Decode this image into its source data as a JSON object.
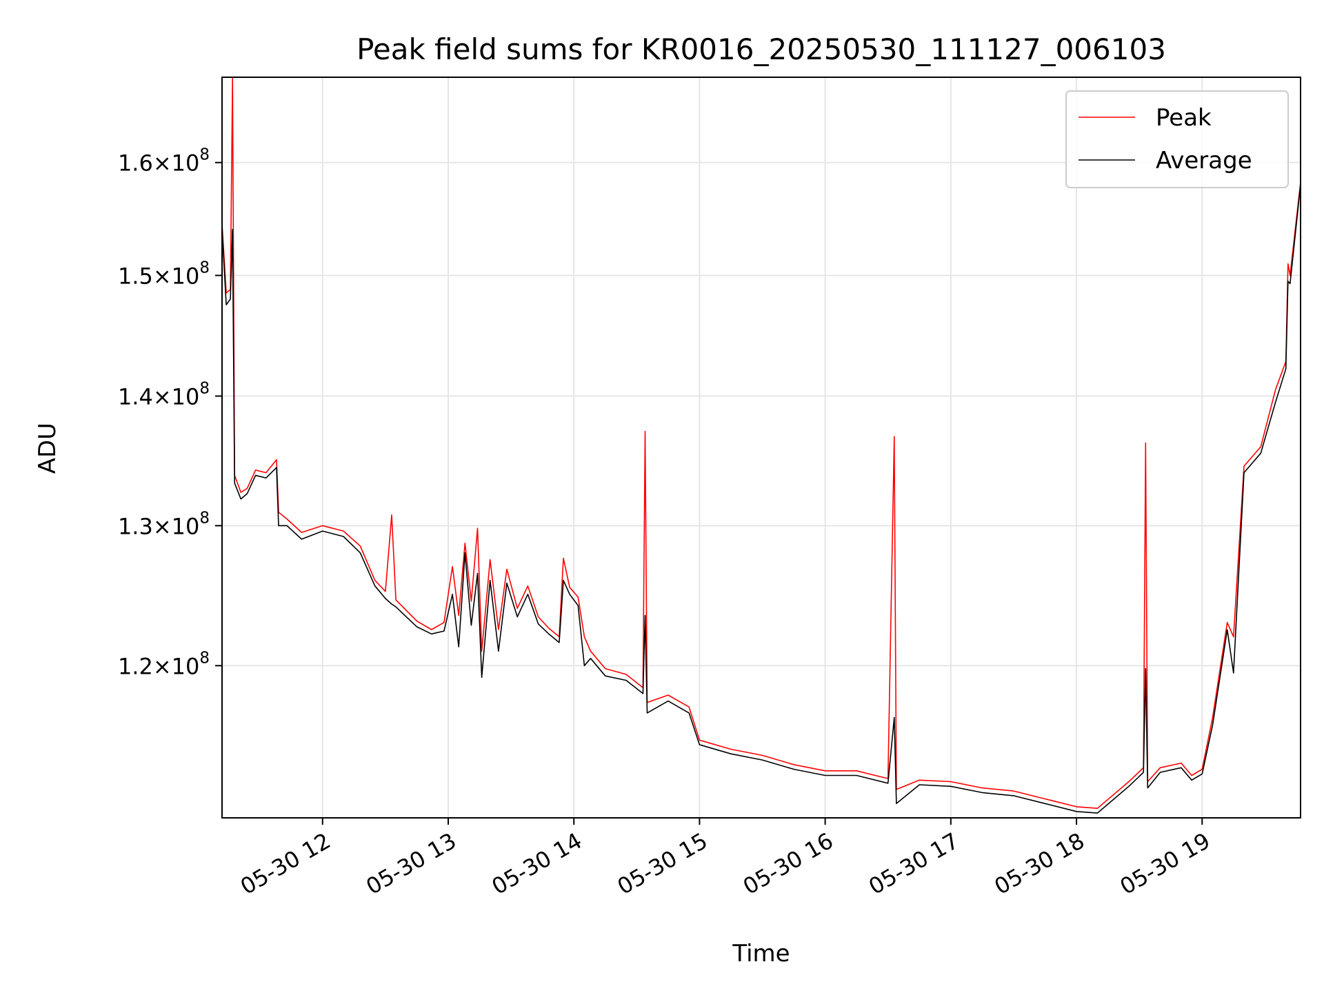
{
  "chart_data": {
    "type": "line",
    "title": "Peak field sums for KR0016_20250530_111127_006103",
    "xlabel": "Time",
    "ylabel": "ADU",
    "y_scale": "log",
    "xlim": [
      "05-30 11:12",
      "05-30 19:47"
    ],
    "ylim": [
      110000000,
      168000000
    ],
    "grid": true,
    "legend_position": "top-right",
    "x_ticks": [
      {
        "value": "05-30 12:00",
        "label": "05-30 12"
      },
      {
        "value": "05-30 13:00",
        "label": "05-30 13"
      },
      {
        "value": "05-30 14:00",
        "label": "05-30 14"
      },
      {
        "value": "05-30 15:00",
        "label": "05-30 15"
      },
      {
        "value": "05-30 16:00",
        "label": "05-30 16"
      },
      {
        "value": "05-30 17:00",
        "label": "05-30 17"
      },
      {
        "value": "05-30 18:00",
        "label": "05-30 18"
      },
      {
        "value": "05-30 19:00",
        "label": "05-30 19"
      }
    ],
    "y_ticks": [
      {
        "value": 120000000,
        "mantissa": "1.2",
        "base": "10",
        "exp": "8"
      },
      {
        "value": 130000000,
        "mantissa": "1.3",
        "base": "10",
        "exp": "8"
      },
      {
        "value": 140000000,
        "mantissa": "1.4",
        "base": "10",
        "exp": "8"
      },
      {
        "value": 150000000,
        "mantissa": "1.5",
        "base": "10",
        "exp": "8"
      },
      {
        "value": 160000000,
        "mantissa": "1.6",
        "base": "10",
        "exp": "8"
      }
    ],
    "series": [
      {
        "name": "Peak",
        "color": "#ff0000",
        "points": [
          [
            "05-30 11:12",
            154500000
          ],
          [
            "05-30 11:14",
            148500000
          ],
          [
            "05-30 11:16",
            148800000
          ],
          [
            "05-30 11:17",
            168000000
          ],
          [
            "05-30 11:18",
            133800000
          ],
          [
            "05-30 11:21",
            132500000
          ],
          [
            "05-30 11:24",
            132800000
          ],
          [
            "05-30 11:28",
            134200000
          ],
          [
            "05-30 11:33",
            134000000
          ],
          [
            "05-30 11:38",
            135000000
          ],
          [
            "05-30 11:39",
            131000000
          ],
          [
            "05-30 11:43",
            130500000
          ],
          [
            "05-30 11:50",
            129500000
          ],
          [
            "05-30 12:00",
            130000000
          ],
          [
            "05-30 12:10",
            129600000
          ],
          [
            "05-30 12:18",
            128500000
          ],
          [
            "05-30 12:25",
            126000000
          ],
          [
            "05-30 12:30",
            125200000
          ],
          [
            "05-30 12:33",
            130800000
          ],
          [
            "05-30 12:35",
            124600000
          ],
          [
            "05-30 12:45",
            123100000
          ],
          [
            "05-30 12:52",
            122500000
          ],
          [
            "05-30 12:58",
            123000000
          ],
          [
            "05-30 13:02",
            127000000
          ],
          [
            "05-30 13:05",
            123500000
          ],
          [
            "05-30 13:08",
            128700000
          ],
          [
            "05-30 13:11",
            124500000
          ],
          [
            "05-30 13:14",
            129800000
          ],
          [
            "05-30 13:16",
            121000000
          ],
          [
            "05-30 13:20",
            127500000
          ],
          [
            "05-30 13:24",
            122500000
          ],
          [
            "05-30 13:28",
            126800000
          ],
          [
            "05-30 13:33",
            124000000
          ],
          [
            "05-30 13:38",
            125600000
          ],
          [
            "05-30 13:43",
            123400000
          ],
          [
            "05-30 13:48",
            122600000
          ],
          [
            "05-30 13:53",
            122000000
          ],
          [
            "05-30 13:55",
            127600000
          ],
          [
            "05-30 13:58",
            125500000
          ],
          [
            "05-30 14:02",
            124800000
          ],
          [
            "05-30 14:05",
            122000000
          ],
          [
            "05-30 14:08",
            121000000
          ],
          [
            "05-30 14:15",
            119800000
          ],
          [
            "05-30 14:25",
            119400000
          ],
          [
            "05-30 14:33",
            118500000
          ],
          [
            "05-30 14:34",
            137200000
          ],
          [
            "05-30 14:35",
            117500000
          ],
          [
            "05-30 14:45",
            118000000
          ],
          [
            "05-30 14:55",
            117200000
          ],
          [
            "05-30 15:00",
            115000000
          ],
          [
            "05-30 15:15",
            114400000
          ],
          [
            "05-30 15:30",
            114000000
          ],
          [
            "05-30 15:45",
            113400000
          ],
          [
            "05-30 16:00",
            113000000
          ],
          [
            "05-30 16:15",
            113000000
          ],
          [
            "05-30 16:30",
            112500000
          ],
          [
            "05-30 16:33",
            136800000
          ],
          [
            "05-30 16:34",
            111800000
          ],
          [
            "05-30 16:45",
            112400000
          ],
          [
            "05-30 17:00",
            112300000
          ],
          [
            "05-30 17:15",
            111900000
          ],
          [
            "05-30 17:30",
            111700000
          ],
          [
            "05-30 17:45",
            111200000
          ],
          [
            "05-30 18:00",
            110700000
          ],
          [
            "05-30 18:10",
            110600000
          ],
          [
            "05-30 18:25",
            112300000
          ],
          [
            "05-30 18:32",
            113200000
          ],
          [
            "05-30 18:33",
            136300000
          ],
          [
            "05-30 18:34",
            112300000
          ],
          [
            "05-30 18:40",
            113200000
          ],
          [
            "05-30 18:50",
            113500000
          ],
          [
            "05-30 18:55",
            112700000
          ],
          [
            "05-30 19:00",
            113100000
          ],
          [
            "05-30 19:05",
            116500000
          ],
          [
            "05-30 19:12",
            123000000
          ],
          [
            "05-30 19:15",
            122000000
          ],
          [
            "05-30 19:20",
            134500000
          ],
          [
            "05-30 19:28",
            136000000
          ],
          [
            "05-30 19:35",
            140500000
          ],
          [
            "05-30 19:40",
            142800000
          ],
          [
            "05-30 19:41",
            151000000
          ],
          [
            "05-30 19:42",
            150000000
          ],
          [
            "05-30 19:47",
            158200000
          ]
        ]
      },
      {
        "name": "Average",
        "color": "#000000",
        "points": [
          [
            "05-30 11:12",
            154000000
          ],
          [
            "05-30 11:14",
            147500000
          ],
          [
            "05-30 11:16",
            148000000
          ],
          [
            "05-30 11:17",
            154000000
          ],
          [
            "05-30 11:18",
            133200000
          ],
          [
            "05-30 11:21",
            132000000
          ],
          [
            "05-30 11:24",
            132400000
          ],
          [
            "05-30 11:28",
            133800000
          ],
          [
            "05-30 11:33",
            133600000
          ],
          [
            "05-30 11:38",
            134400000
          ],
          [
            "05-30 11:39",
            130000000
          ],
          [
            "05-30 11:43",
            130000000
          ],
          [
            "05-30 11:50",
            129000000
          ],
          [
            "05-30 12:00",
            129600000
          ],
          [
            "05-30 12:10",
            129200000
          ],
          [
            "05-30 12:18",
            128000000
          ],
          [
            "05-30 12:25",
            125600000
          ],
          [
            "05-30 12:30",
            124700000
          ],
          [
            "05-30 12:33",
            124300000
          ],
          [
            "05-30 12:35",
            124100000
          ],
          [
            "05-30 12:45",
            122700000
          ],
          [
            "05-30 12:52",
            122200000
          ],
          [
            "05-30 12:58",
            122400000
          ],
          [
            "05-30 13:02",
            125000000
          ],
          [
            "05-30 13:05",
            121300000
          ],
          [
            "05-30 13:08",
            128000000
          ],
          [
            "05-30 13:11",
            122800000
          ],
          [
            "05-30 13:14",
            126500000
          ],
          [
            "05-30 13:16",
            119200000
          ],
          [
            "05-30 13:20",
            126000000
          ],
          [
            "05-30 13:24",
            121000000
          ],
          [
            "05-30 13:28",
            125800000
          ],
          [
            "05-30 13:33",
            123400000
          ],
          [
            "05-30 13:38",
            125000000
          ],
          [
            "05-30 13:43",
            122900000
          ],
          [
            "05-30 13:48",
            122200000
          ],
          [
            "05-30 13:53",
            121600000
          ],
          [
            "05-30 13:55",
            126000000
          ],
          [
            "05-30 13:58",
            125000000
          ],
          [
            "05-30 14:02",
            124200000
          ],
          [
            "05-30 14:05",
            120000000
          ],
          [
            "05-30 14:08",
            120500000
          ],
          [
            "05-30 14:15",
            119300000
          ],
          [
            "05-30 14:25",
            119000000
          ],
          [
            "05-30 14:33",
            118100000
          ],
          [
            "05-30 14:34",
            123500000
          ],
          [
            "05-30 14:35",
            116800000
          ],
          [
            "05-30 14:45",
            117600000
          ],
          [
            "05-30 14:55",
            116800000
          ],
          [
            "05-30 15:00",
            114700000
          ],
          [
            "05-30 15:15",
            114100000
          ],
          [
            "05-30 15:30",
            113700000
          ],
          [
            "05-30 15:45",
            113100000
          ],
          [
            "05-30 16:00",
            112700000
          ],
          [
            "05-30 16:15",
            112700000
          ],
          [
            "05-30 16:30",
            112200000
          ],
          [
            "05-30 16:33",
            116500000
          ],
          [
            "05-30 16:34",
            110900000
          ],
          [
            "05-30 16:45",
            112100000
          ],
          [
            "05-30 17:00",
            112000000
          ],
          [
            "05-30 17:15",
            111600000
          ],
          [
            "05-30 17:30",
            111400000
          ],
          [
            "05-30 17:45",
            110900000
          ],
          [
            "05-30 18:00",
            110400000
          ],
          [
            "05-30 18:10",
            110300000
          ],
          [
            "05-30 18:25",
            112000000
          ],
          [
            "05-30 18:32",
            112900000
          ],
          [
            "05-30 18:33",
            119800000
          ],
          [
            "05-30 18:34",
            111900000
          ],
          [
            "05-30 18:40",
            112900000
          ],
          [
            "05-30 18:50",
            113200000
          ],
          [
            "05-30 18:55",
            112400000
          ],
          [
            "05-30 19:00",
            112800000
          ],
          [
            "05-30 19:05",
            116000000
          ],
          [
            "05-30 19:12",
            122500000
          ],
          [
            "05-30 19:15",
            119500000
          ],
          [
            "05-30 19:20",
            134000000
          ],
          [
            "05-30 19:28",
            135500000
          ],
          [
            "05-30 19:35",
            139500000
          ],
          [
            "05-30 19:40",
            142200000
          ],
          [
            "05-30 19:41",
            149500000
          ],
          [
            "05-30 19:42",
            149300000
          ],
          [
            "05-30 19:47",
            158000000
          ]
        ]
      }
    ]
  }
}
